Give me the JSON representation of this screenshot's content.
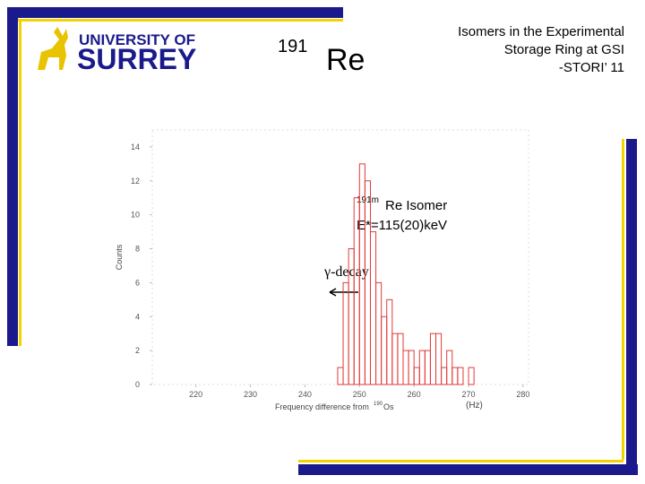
{
  "header": {
    "logo_line1": "UNIVERSITY OF",
    "logo_line2": "SURREY",
    "nuclide_mass": "191",
    "nuclide_element": "Re",
    "title_lines": [
      "Isomers in the Experimental",
      "Storage Ring at GSI",
      "-STORI’ 11"
    ]
  },
  "chart_data": {
    "type": "histogram",
    "bins": [
      246,
      247,
      248,
      249,
      250,
      251,
      252,
      253,
      254,
      255,
      256,
      257,
      258,
      259,
      260,
      261,
      262,
      263,
      264,
      265,
      266,
      267,
      268,
      269,
      270,
      271,
      272
    ],
    "values": [
      1,
      6,
      8,
      11,
      13,
      12,
      9,
      6,
      4,
      5,
      3,
      3,
      2,
      2,
      1,
      2,
      2,
      3,
      3,
      1,
      2,
      1,
      1,
      0,
      1,
      0
    ],
    "color": "#e03a3a",
    "xlim": [
      212,
      281
    ],
    "ylim": [
      0,
      15
    ],
    "xticks": [
      220,
      230,
      240,
      250,
      260,
      270,
      280
    ],
    "yticks": [
      0,
      2,
      4,
      6,
      8,
      10,
      12,
      14
    ],
    "ylabel": "Counts",
    "xlabel": "Frequency difference from",
    "xlabel_sup": "190",
    "xlabel_element": "Os",
    "xunit": "(Hz)",
    "annotations": {
      "isomer_sup": "191m",
      "isomer": "Re Isomer",
      "energy": "E*=115(20)keV",
      "decay": "γ-decay"
    }
  }
}
